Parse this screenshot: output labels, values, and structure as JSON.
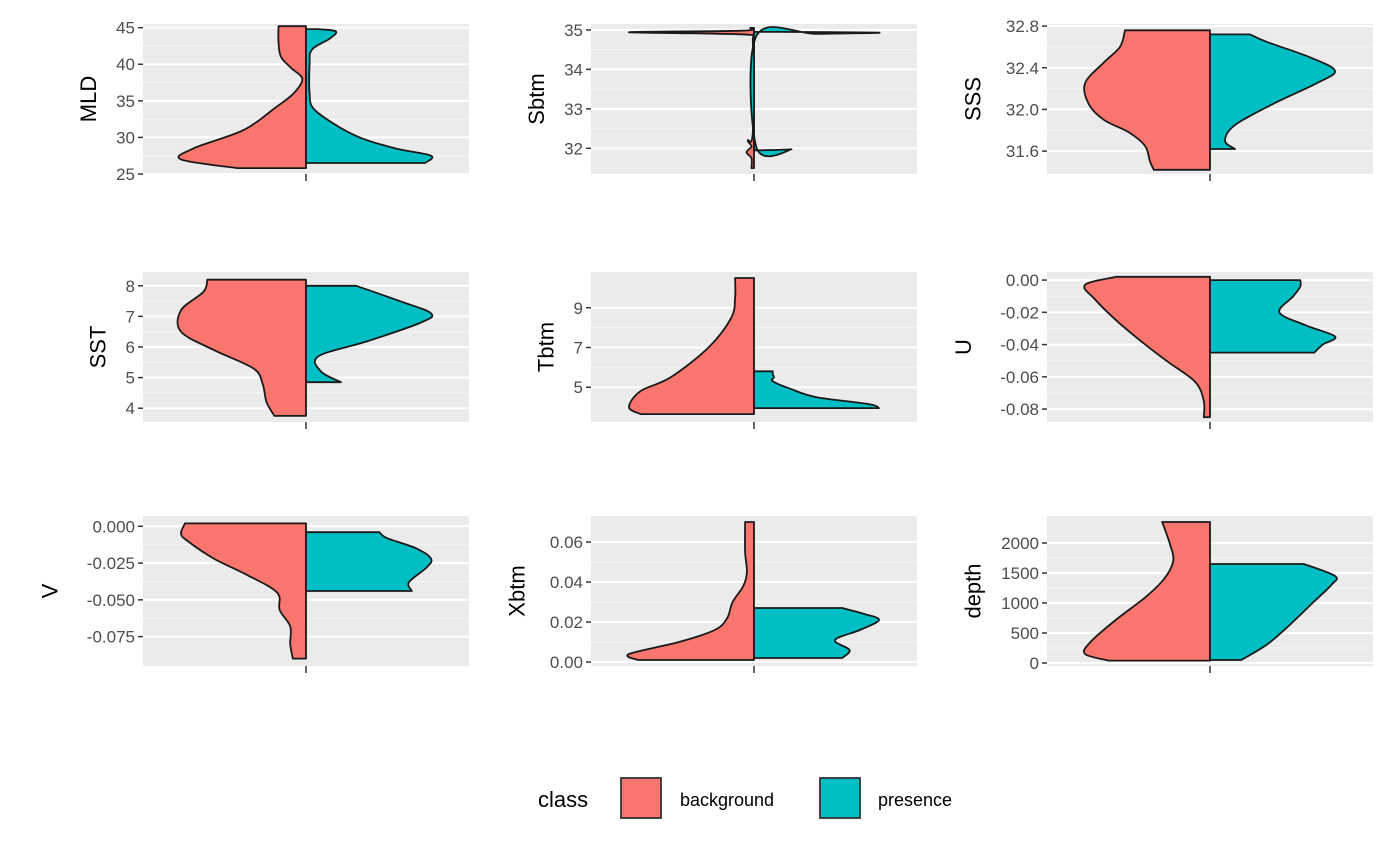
{
  "chart_data": {
    "type": "split-violin",
    "legend": {
      "title": "class",
      "position": "bottom",
      "items": [
        {
          "label": "background",
          "color": "#F8766D"
        },
        {
          "label": "presence",
          "color": "#00BFC4"
        }
      ]
    },
    "facets": [
      {
        "ylabel": "MLD",
        "ylim": [
          25,
          45.5
        ],
        "ticks": [
          25,
          30,
          35,
          40,
          45
        ],
        "tick_labels": [
          "25",
          "30",
          "35",
          "40",
          "45"
        ],
        "background": {
          "range": [
            25.8,
            45.2
          ],
          "density": [
            [
              25.8,
              0.55
            ],
            [
              27,
              1.0
            ],
            [
              28.5,
              0.9
            ],
            [
              31,
              0.5
            ],
            [
              34,
              0.25
            ],
            [
              36,
              0.1
            ],
            [
              38,
              0.03
            ],
            [
              39.5,
              0.12
            ],
            [
              41,
              0.2
            ],
            [
              43,
              0.22
            ],
            [
              45.2,
              0.22
            ]
          ]
        },
        "presence": {
          "range": [
            26.5,
            44.8
          ],
          "density": [
            [
              26.5,
              1.0
            ],
            [
              27.5,
              1.05
            ],
            [
              28.5,
              0.75
            ],
            [
              30,
              0.45
            ],
            [
              32,
              0.22
            ],
            [
              34,
              0.06
            ],
            [
              36,
              0.03
            ],
            [
              40,
              0.03
            ],
            [
              42,
              0.05
            ],
            [
              43.5,
              0.2
            ],
            [
              44.5,
              0.25
            ],
            [
              44.8,
              0.1
            ]
          ]
        }
      },
      {
        "ylabel": "Sbtm",
        "ylim": [
          31.35,
          35.15
        ],
        "ticks": [
          32,
          33,
          34,
          35
        ],
        "tick_labels": [
          "32",
          "33",
          "34",
          "35"
        ],
        "background": {
          "range": [
            31.5,
            35.05
          ],
          "density": [
            [
              31.5,
              0.02
            ],
            [
              31.75,
              0.02
            ],
            [
              31.9,
              0.06
            ],
            [
              32.05,
              0.02
            ],
            [
              32.2,
              0.05
            ],
            [
              32.4,
              0.01
            ],
            [
              34.7,
              0.01
            ],
            [
              34.88,
              0.05
            ],
            [
              34.94,
              1.0
            ],
            [
              34.98,
              0.1
            ],
            [
              35.05,
              0.03
            ]
          ]
        },
        "presence": {
          "range": [
            31.95,
            34.95
          ],
          "density": [
            [
              31.95,
              0.05
            ],
            [
              31.98,
              0.3
            ],
            [
              32.02,
              0.02
            ],
            [
              34.85,
              0.02
            ],
            [
              34.9,
              0.5
            ],
            [
              34.93,
              1.0
            ],
            [
              34.95,
              0.2
            ]
          ]
        }
      },
      {
        "ylabel": "SSS",
        "ylim": [
          31.38,
          32.82
        ],
        "ticks": [
          31.6,
          32.0,
          32.4,
          32.8
        ],
        "tick_labels": [
          "31.6",
          "32.0",
          "32.4",
          "32.8"
        ],
        "background": {
          "range": [
            31.42,
            32.76
          ],
          "density": [
            [
              31.42,
              0.45
            ],
            [
              31.5,
              0.48
            ],
            [
              31.65,
              0.52
            ],
            [
              31.78,
              0.65
            ],
            [
              31.9,
              0.85
            ],
            [
              32.05,
              0.97
            ],
            [
              32.25,
              1.0
            ],
            [
              32.45,
              0.85
            ],
            [
              32.6,
              0.72
            ],
            [
              32.76,
              0.68
            ]
          ]
        },
        "presence": {
          "range": [
            31.62,
            32.72
          ],
          "density": [
            [
              31.62,
              0.2
            ],
            [
              31.7,
              0.12
            ],
            [
              31.85,
              0.2
            ],
            [
              32.05,
              0.5
            ],
            [
              32.25,
              0.85
            ],
            [
              32.37,
              1.0
            ],
            [
              32.5,
              0.8
            ],
            [
              32.65,
              0.45
            ],
            [
              32.72,
              0.32
            ]
          ]
        }
      },
      {
        "ylabel": "SST",
        "ylim": [
          3.55,
          8.45
        ],
        "ticks": [
          4,
          5,
          6,
          7,
          8
        ],
        "tick_labels": [
          "4",
          "5",
          "6",
          "7",
          "8"
        ],
        "background": {
          "range": [
            3.75,
            8.2
          ],
          "density": [
            [
              3.75,
              0.24
            ],
            [
              4.2,
              0.3
            ],
            [
              4.8,
              0.33
            ],
            [
              5.3,
              0.4
            ],
            [
              5.9,
              0.7
            ],
            [
              6.5,
              0.95
            ],
            [
              7.2,
              0.95
            ],
            [
              7.8,
              0.78
            ],
            [
              8.2,
              0.75
            ]
          ]
        },
        "presence": {
          "range": [
            4.85,
            8.0
          ],
          "density": [
            [
              4.85,
              0.28
            ],
            [
              5.2,
              0.12
            ],
            [
              5.7,
              0.1
            ],
            [
              6.2,
              0.5
            ],
            [
              6.8,
              0.92
            ],
            [
              7.1,
              1.0
            ],
            [
              7.5,
              0.75
            ],
            [
              8.0,
              0.4
            ]
          ]
        }
      },
      {
        "ylabel": "Tbtm",
        "ylim": [
          3.25,
          10.8
        ],
        "ticks": [
          5,
          7,
          9
        ],
        "tick_labels": [
          "5",
          "7",
          "9"
        ],
        "background": {
          "range": [
            3.65,
            10.5
          ],
          "density": [
            [
              3.65,
              0.3
            ],
            [
              4.0,
              0.33
            ],
            [
              4.8,
              0.3
            ],
            [
              5.5,
              0.22
            ],
            [
              7,
              0.12
            ],
            [
              8.5,
              0.06
            ],
            [
              9.5,
              0.05
            ],
            [
              10.5,
              0.05
            ]
          ]
        },
        "presence": {
          "range": [
            3.95,
            5.8
          ],
          "density": [
            [
              3.95,
              1.0
            ],
            [
              4.15,
              0.92
            ],
            [
              4.5,
              0.5
            ],
            [
              4.9,
              0.3
            ],
            [
              5.3,
              0.15
            ],
            [
              5.5,
              0.16
            ],
            [
              5.65,
              0.15
            ],
            [
              5.8,
              0.15
            ]
          ]
        }
      },
      {
        "ylabel": "U",
        "ylim": [
          -0.088,
          0.005
        ],
        "ticks": [
          0.0,
          -0.02,
          -0.04,
          -0.06,
          -0.08
        ],
        "tick_labels": [
          "0.00",
          "-0.02",
          "-0.04",
          "-0.06",
          "-0.08"
        ],
        "background": {
          "range": [
            -0.085,
            0.002
          ],
          "density": [
            [
              -0.085,
              0.05
            ],
            [
              -0.075,
              0.05
            ],
            [
              -0.063,
              0.12
            ],
            [
              -0.05,
              0.35
            ],
            [
              -0.038,
              0.55
            ],
            [
              -0.025,
              0.75
            ],
            [
              -0.012,
              0.92
            ],
            [
              -0.003,
              1.0
            ],
            [
              0.002,
              0.75
            ]
          ]
        },
        "presence": {
          "range": [
            -0.045,
            0.0
          ],
          "density": [
            [
              -0.045,
              0.6
            ],
            [
              -0.04,
              0.65
            ],
            [
              -0.035,
              0.72
            ],
            [
              -0.028,
              0.55
            ],
            [
              -0.02,
              0.4
            ],
            [
              -0.01,
              0.48
            ],
            [
              -0.004,
              0.52
            ],
            [
              0.0,
              0.52
            ]
          ]
        }
      },
      {
        "ylabel": "V",
        "ylim": [
          -0.095,
          0.007
        ],
        "ticks": [
          0.0,
          -0.025,
          -0.05,
          -0.075
        ],
        "tick_labels": [
          "0.000",
          "-0.025",
          "-0.050",
          "-0.075"
        ],
        "background": {
          "range": [
            -0.09,
            0.002
          ],
          "density": [
            [
              -0.09,
              0.1
            ],
            [
              -0.08,
              0.12
            ],
            [
              -0.068,
              0.12
            ],
            [
              -0.057,
              0.2
            ],
            [
              -0.045,
              0.22
            ],
            [
              -0.033,
              0.45
            ],
            [
              -0.022,
              0.7
            ],
            [
              -0.01,
              0.9
            ],
            [
              -0.005,
              0.95
            ],
            [
              0.002,
              0.92
            ]
          ]
        },
        "presence": {
          "range": [
            -0.044,
            -0.004
          ],
          "density": [
            [
              -0.044,
              0.72
            ],
            [
              -0.038,
              0.7
            ],
            [
              -0.028,
              0.82
            ],
            [
              -0.022,
              0.85
            ],
            [
              -0.015,
              0.75
            ],
            [
              -0.008,
              0.55
            ],
            [
              -0.004,
              0.5
            ]
          ]
        }
      },
      {
        "ylabel": "Xbtm",
        "ylim": [
          -0.002,
          0.073
        ],
        "ticks": [
          0.0,
          0.02,
          0.04,
          0.06
        ],
        "tick_labels": [
          "0.00",
          "0.02",
          "0.04",
          "0.06"
        ],
        "background": {
          "range": [
            0.001,
            0.07
          ],
          "density": [
            [
              0.001,
              0.65
            ],
            [
              0.004,
              0.7
            ],
            [
              0.01,
              0.42
            ],
            [
              0.016,
              0.22
            ],
            [
              0.022,
              0.15
            ],
            [
              0.03,
              0.12
            ],
            [
              0.038,
              0.06
            ],
            [
              0.045,
              0.04
            ],
            [
              0.055,
              0.05
            ],
            [
              0.07,
              0.05
            ]
          ]
        },
        "presence": {
          "range": [
            0.002,
            0.027
          ],
          "density": [
            [
              0.002,
              0.6
            ],
            [
              0.006,
              0.65
            ],
            [
              0.011,
              0.55
            ],
            [
              0.016,
              0.72
            ],
            [
              0.021,
              0.85
            ],
            [
              0.024,
              0.75
            ],
            [
              0.027,
              0.6
            ]
          ]
        }
      },
      {
        "ylabel": "depth",
        "ylim": [
          -50,
          2450
        ],
        "ticks": [
          0,
          500,
          1000,
          1500,
          2000
        ],
        "tick_labels": [
          "0",
          "500",
          "1000",
          "1500",
          "2000"
        ],
        "background": {
          "range": [
            40,
            2350
          ],
          "density": [
            [
              40,
              0.55
            ],
            [
              150,
              0.68
            ],
            [
              350,
              0.65
            ],
            [
              700,
              0.52
            ],
            [
              1100,
              0.35
            ],
            [
              1400,
              0.25
            ],
            [
              1700,
              0.2
            ],
            [
              2000,
              0.22
            ],
            [
              2350,
              0.26
            ]
          ]
        },
        "presence": {
          "range": [
            50,
            1650
          ],
          "density": [
            [
              50,
              0.25
            ],
            [
              300,
              0.45
            ],
            [
              600,
              0.62
            ],
            [
              1000,
              0.82
            ],
            [
              1300,
              0.97
            ],
            [
              1450,
              1.0
            ],
            [
              1650,
              0.75
            ]
          ]
        }
      }
    ]
  }
}
